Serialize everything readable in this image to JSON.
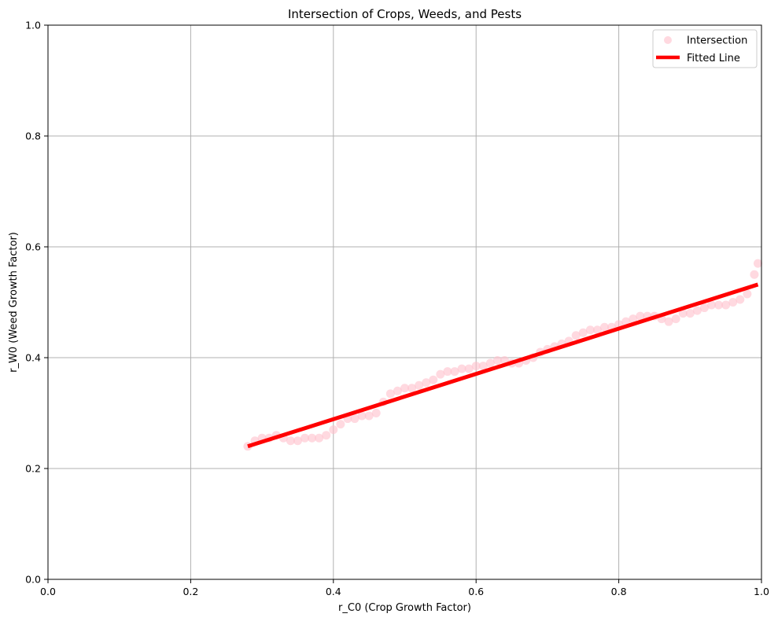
{
  "chart_data": {
    "type": "scatter",
    "title": "Intersection of Crops, Weeds, and Pests",
    "xlabel": "r_C0 (Crop Growth Factor)",
    "ylabel": "r_W0 (Weed Growth Factor)",
    "xlim": [
      0,
      1
    ],
    "ylim": [
      0,
      1
    ],
    "xticks": [
      "0.0",
      "0.2",
      "0.4",
      "0.6",
      "0.8",
      "1.0"
    ],
    "yticks": [
      "0.0",
      "0.2",
      "0.4",
      "0.6",
      "0.8",
      "1.0"
    ],
    "grid": true,
    "legend_position": "top-right",
    "series": [
      {
        "name": "Intersection",
        "kind": "scatter",
        "color": "#ffc0cb",
        "points": [
          [
            0.28,
            0.24
          ],
          [
            0.29,
            0.25
          ],
          [
            0.3,
            0.255
          ],
          [
            0.31,
            0.255
          ],
          [
            0.32,
            0.26
          ],
          [
            0.33,
            0.255
          ],
          [
            0.34,
            0.25
          ],
          [
            0.35,
            0.25
          ],
          [
            0.36,
            0.255
          ],
          [
            0.37,
            0.255
          ],
          [
            0.38,
            0.255
          ],
          [
            0.39,
            0.26
          ],
          [
            0.4,
            0.27
          ],
          [
            0.41,
            0.28
          ],
          [
            0.42,
            0.29
          ],
          [
            0.43,
            0.29
          ],
          [
            0.44,
            0.295
          ],
          [
            0.45,
            0.295
          ],
          [
            0.46,
            0.3
          ],
          [
            0.47,
            0.32
          ],
          [
            0.48,
            0.335
          ],
          [
            0.49,
            0.34
          ],
          [
            0.5,
            0.345
          ],
          [
            0.51,
            0.345
          ],
          [
            0.52,
            0.35
          ],
          [
            0.53,
            0.355
          ],
          [
            0.54,
            0.36
          ],
          [
            0.55,
            0.37
          ],
          [
            0.56,
            0.375
          ],
          [
            0.57,
            0.375
          ],
          [
            0.58,
            0.38
          ],
          [
            0.59,
            0.38
          ],
          [
            0.6,
            0.385
          ],
          [
            0.61,
            0.385
          ],
          [
            0.62,
            0.39
          ],
          [
            0.63,
            0.395
          ],
          [
            0.64,
            0.395
          ],
          [
            0.65,
            0.39
          ],
          [
            0.66,
            0.39
          ],
          [
            0.67,
            0.395
          ],
          [
            0.68,
            0.4
          ],
          [
            0.69,
            0.41
          ],
          [
            0.7,
            0.415
          ],
          [
            0.71,
            0.42
          ],
          [
            0.72,
            0.425
          ],
          [
            0.73,
            0.43
          ],
          [
            0.74,
            0.44
          ],
          [
            0.75,
            0.445
          ],
          [
            0.76,
            0.45
          ],
          [
            0.77,
            0.45
          ],
          [
            0.78,
            0.455
          ],
          [
            0.79,
            0.455
          ],
          [
            0.8,
            0.46
          ],
          [
            0.81,
            0.465
          ],
          [
            0.82,
            0.47
          ],
          [
            0.83,
            0.475
          ],
          [
            0.84,
            0.475
          ],
          [
            0.85,
            0.475
          ],
          [
            0.86,
            0.47
          ],
          [
            0.87,
            0.465
          ],
          [
            0.88,
            0.47
          ],
          [
            0.89,
            0.48
          ],
          [
            0.9,
            0.48
          ],
          [
            0.91,
            0.485
          ],
          [
            0.92,
            0.49
          ],
          [
            0.93,
            0.495
          ],
          [
            0.94,
            0.495
          ],
          [
            0.95,
            0.495
          ],
          [
            0.96,
            0.5
          ],
          [
            0.97,
            0.505
          ],
          [
            0.98,
            0.515
          ],
          [
            0.99,
            0.55
          ],
          [
            0.995,
            0.57
          ]
        ]
      },
      {
        "name": "Fitted Line",
        "kind": "line",
        "color": "#ff0000",
        "x": [
          0.28,
          0.995
        ],
        "y": [
          0.24,
          0.532
        ]
      }
    ]
  }
}
